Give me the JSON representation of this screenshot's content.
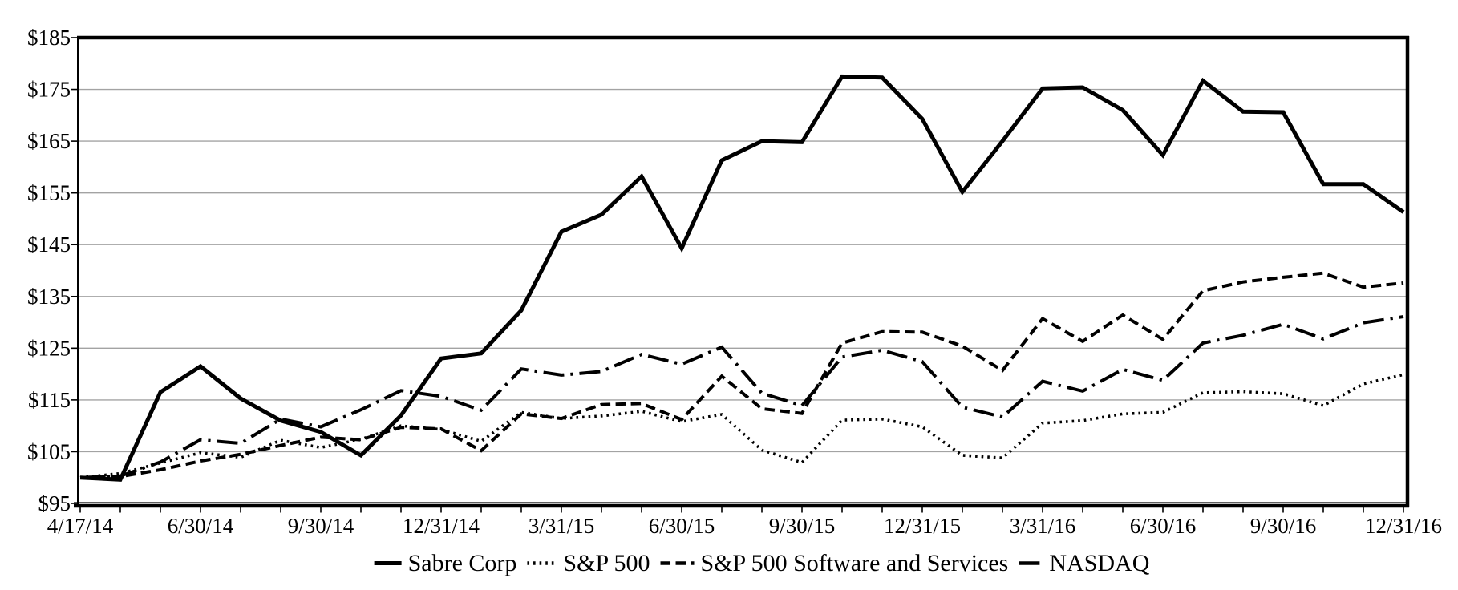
{
  "page": {
    "background": "#ffffff",
    "text_color": "#000000",
    "gridline_color": "#a3a3a3",
    "axis_color": "#000000"
  },
  "chart_data": {
    "type": "line",
    "title": "",
    "xlabel": "",
    "ylabel": "",
    "grid": "horizontal",
    "legend_position": "bottom-center",
    "ylim": [
      95,
      185
    ],
    "y_ticks": [
      {
        "label": "$95",
        "value": 95
      },
      {
        "label": "$105",
        "value": 105
      },
      {
        "label": "$115",
        "value": 115
      },
      {
        "label": "$125",
        "value": 125
      },
      {
        "label": "$135",
        "value": 135
      },
      {
        "label": "$145",
        "value": 145
      },
      {
        "label": "$155",
        "value": 155
      },
      {
        "label": "$165",
        "value": 165
      },
      {
        "label": "$175",
        "value": 175
      },
      {
        "label": "$185",
        "value": 185
      }
    ],
    "x": [
      "4/17/14",
      "4/30/14",
      "5/30/14",
      "6/30/14",
      "7/31/14",
      "8/29/14",
      "9/30/14",
      "10/31/14",
      "11/28/14",
      "12/31/14",
      "1/30/15",
      "2/27/15",
      "3/31/15",
      "4/30/15",
      "5/29/15",
      "6/30/15",
      "7/31/15",
      "8/31/15",
      "9/30/15",
      "10/30/15",
      "11/30/15",
      "12/31/15",
      "1/29/16",
      "2/29/16",
      "3/31/16",
      "4/29/16",
      "5/31/16",
      "6/30/16",
      "7/29/16",
      "8/31/16",
      "9/30/16",
      "10/31/16",
      "11/30/16",
      "12/31/16"
    ],
    "x_tick_labels": [
      {
        "label": "4/17/14",
        "index": 0
      },
      {
        "label": "6/30/14",
        "index": 3
      },
      {
        "label": "9/30/14",
        "index": 6
      },
      {
        "label": "12/31/14",
        "index": 9
      },
      {
        "label": "3/31/15",
        "index": 12
      },
      {
        "label": "6/30/15",
        "index": 15
      },
      {
        "label": "9/30/15",
        "index": 18
      },
      {
        "label": "12/31/15",
        "index": 21
      },
      {
        "label": "3/31/16",
        "index": 24
      },
      {
        "label": "6/30/16",
        "index": 27
      },
      {
        "label": "9/30/16",
        "index": 30
      },
      {
        "label": "12/31/16",
        "index": 33
      }
    ],
    "series": [
      {
        "name": "Sabre Corp",
        "line_style": "solid",
        "color": "#000000",
        "values": [
          100,
          99.6,
          116.5,
          121.5,
          115.3,
          111,
          108.8,
          104.3,
          112,
          123,
          124,
          132.3,
          147.5,
          150.8,
          158.2,
          144.3,
          161.3,
          165,
          164.8,
          177.5,
          177.3,
          169.3,
          155.2,
          165,
          175.2,
          175.4,
          171,
          162.3,
          176.7,
          170.7,
          170.6,
          156.7,
          156.7,
          151.3
        ]
      },
      {
        "name": "S&P 500",
        "line_style": "dotted",
        "color": "#000000",
        "values": [
          100,
          100.8,
          102.8,
          104.8,
          103.9,
          107.2,
          105.8,
          107.4,
          110,
          109.3,
          107,
          112.6,
          111.4,
          111.9,
          112.8,
          110.8,
          112.2,
          105.3,
          102.9,
          111.1,
          111.3,
          109.8,
          104.3,
          103.8,
          110.5,
          111,
          112.3,
          112.6,
          116.4,
          116.6,
          116.2,
          113.9,
          118.1,
          119.9
        ]
      },
      {
        "name": "S&P 500 Software and Services",
        "line_style": "dashed",
        "color": "#000000",
        "values": [
          100,
          100.2,
          101.5,
          103.2,
          104.5,
          106.2,
          107.8,
          107.3,
          109.7,
          109.4,
          105.2,
          112.3,
          111.4,
          114.1,
          114.3,
          111.2,
          119.6,
          113.3,
          112.4,
          126,
          128.2,
          128.1,
          125.4,
          120.7,
          130.7,
          126.3,
          131.4,
          126.7,
          136.1,
          137.8,
          138.7,
          139.5,
          136.8,
          137.6
        ]
      },
      {
        "name": "NASDAQ",
        "line_style": "dash-dot",
        "color": "#000000",
        "values": [
          100,
          100.3,
          103,
          107.3,
          106.6,
          111.3,
          109.8,
          113.1,
          116.8,
          115.7,
          113,
          121,
          119.8,
          120.5,
          123.8,
          121.9,
          125.2,
          116.3,
          113.9,
          123.3,
          124.6,
          122.4,
          113.6,
          111.7,
          118.6,
          116.7,
          120.9,
          118.8,
          126,
          127.5,
          129.6,
          126.8,
          129.9,
          131.1
        ]
      }
    ]
  }
}
